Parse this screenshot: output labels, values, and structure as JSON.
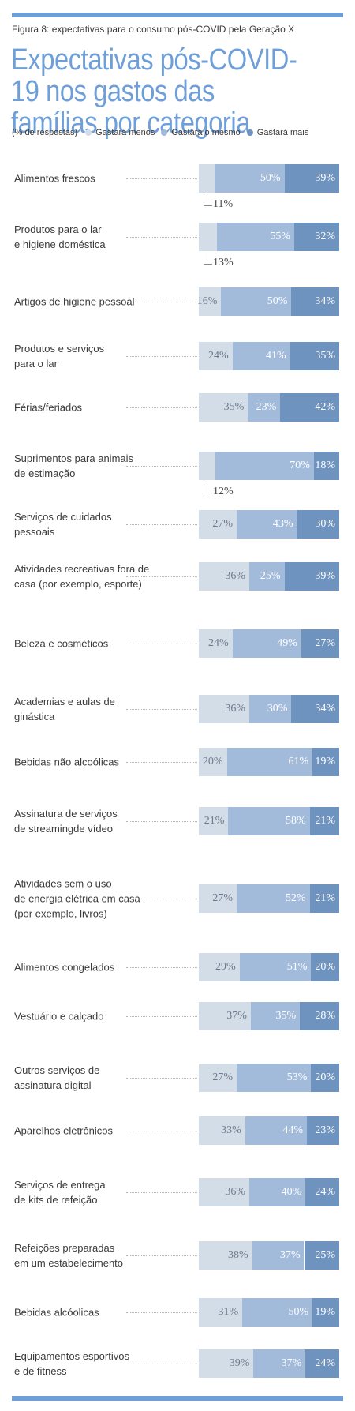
{
  "figure_label": "Figura 8: expectativas para o consumo pós-COVID pela Geração X",
  "title": "Expectativas pós-COVID-19 nos gastos das famílias por categoria",
  "legend": {
    "unit_label": "(% de respostas)",
    "entries": [
      {
        "label": "Gastará menos",
        "color": "#d3dde8"
      },
      {
        "label": "Gastará o mesmo",
        "color": "#a3bbdb"
      },
      {
        "label": "Gastará mais",
        "color": "#6f93bf"
      }
    ]
  },
  "chart_data": {
    "type": "bar",
    "orientation": "horizontal",
    "stacked": true,
    "normalized_to_100": true,
    "value_suffix": "%",
    "categories": [
      "Alimentos frescos",
      "Produtos para o lar e higiene doméstica",
      "Artigos de higiene pessoal",
      "Produtos e serviços para o lar",
      "Férias/feriados",
      "Suprimentos para animais de estimação",
      "Serviços de cuidados pessoais",
      "Atividades recreativas fora de casa (por exemplo, esporte)",
      "Beleza e cosméticos",
      "Academias e aulas de ginástica",
      "Bebidas não alcoólicas",
      "Assinatura de serviços de streamingde vídeo",
      "Atividades sem o uso de energia elétrica em casa (por exemplo, livros)",
      "Alimentos congelados",
      "Vestuário e calçado",
      "Outros serviços de assinatura digital",
      "Aparelhos eletrônicos",
      "Serviços de entrega de kits de refeição",
      "Refeições preparadas em um estabelecimento",
      "Bebidas alcóolicas",
      "Equipamentos esportivos e de fitness"
    ],
    "category_lines": [
      [
        "Alimentos frescos"
      ],
      [
        "Produtos para o lar",
        "e higiene doméstica"
      ],
      [
        "Artigos de higiene pessoal"
      ],
      [
        "Produtos e serviços",
        "para o lar"
      ],
      [
        "Férias/feriados"
      ],
      [
        "Suprimentos para animais",
        "de estimação"
      ],
      [
        "Serviços de cuidados",
        "pessoais"
      ],
      [
        "Atividades recreativas fora de",
        "casa (por exemplo, esporte)"
      ],
      [
        "Beleza e cosméticos"
      ],
      [
        "Academias e aulas de",
        "ginástica"
      ],
      [
        "Bebidas não alcoólicas"
      ],
      [
        "Assinatura de serviços",
        "de streamingde vídeo"
      ],
      [
        "Atividades sem o uso",
        "de energia elétrica em casa",
        "(por exemplo, livros)"
      ],
      [
        "Alimentos congelados"
      ],
      [
        "Vestuário e calçado"
      ],
      [
        "Outros serviços de",
        "assinatura digital"
      ],
      [
        "Aparelhos eletrônicos"
      ],
      [
        "Serviços de entrega",
        "de kits de refeição"
      ],
      [
        "Refeições preparadas",
        "em um estabelecimento"
      ],
      [
        "Bebidas alcóolicas"
      ],
      [
        "Equipamentos esportivos",
        "e de fitness"
      ]
    ],
    "series": [
      {
        "name": "Gastará menos",
        "values": [
          11,
          13,
          16,
          24,
          35,
          12,
          27,
          36,
          24,
          36,
          20,
          21,
          27,
          29,
          37,
          27,
          33,
          36,
          38,
          31,
          39
        ]
      },
      {
        "name": "Gastará o mesmo",
        "values": [
          50,
          55,
          50,
          41,
          23,
          70,
          43,
          25,
          49,
          30,
          61,
          58,
          52,
          51,
          35,
          53,
          44,
          40,
          37,
          50,
          37
        ]
      },
      {
        "name": "Gastará mais",
        "values": [
          39,
          32,
          34,
          35,
          42,
          18,
          30,
          39,
          27,
          34,
          19,
          21,
          21,
          20,
          28,
          20,
          23,
          24,
          25,
          19,
          24
        ]
      }
    ],
    "callout_categories": [
      "Alimentos frescos",
      "Produtos para o lar e higiene doméstica",
      "Suprimentos para animais de estimação"
    ]
  }
}
